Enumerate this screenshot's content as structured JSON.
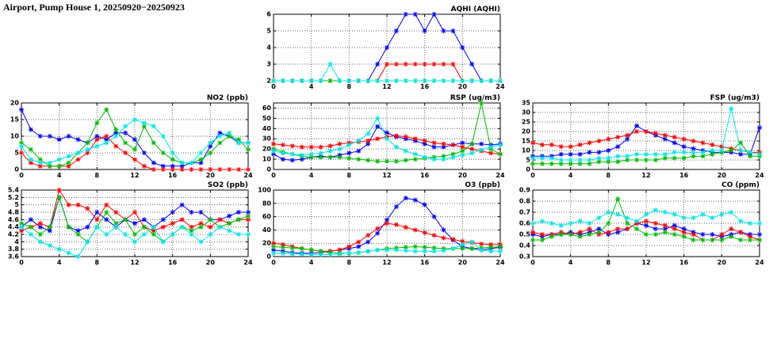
{
  "page_title": "Airport, Pump House 1, 20250920−20250923",
  "colors": {
    "series_blue": "#0000ff",
    "series_red": "#ff0000",
    "series_green": "#00bb00",
    "series_cyan": "#00e5e5",
    "grid": "#666666",
    "frame": "#000000",
    "background": "#ffffff"
  },
  "hours": [
    0,
    1,
    2,
    3,
    4,
    5,
    6,
    7,
    8,
    9,
    10,
    11,
    12,
    13,
    14,
    15,
    16,
    17,
    18,
    19,
    20,
    21,
    22,
    23,
    24
  ],
  "charts": [
    {
      "id": "aqhi",
      "title": "AQHI (AQHI)",
      "type": "line",
      "xlim": [
        0,
        24
      ],
      "xticks": [
        0,
        4,
        8,
        12,
        16,
        20,
        24
      ],
      "xlabels": [
        "0",
        "4",
        "8",
        "12",
        "16",
        "20",
        "24"
      ],
      "ylim": [
        2,
        6
      ],
      "yticks": [
        2,
        3,
        4,
        5,
        6
      ],
      "ylabels": [
        "2",
        "3",
        "4",
        "5",
        "6"
      ],
      "series": [
        {
          "name": "series-blue",
          "color": "#0000ff",
          "values": [
            2,
            2,
            2,
            2,
            2,
            2,
            2,
            2,
            2,
            2,
            2,
            3,
            4,
            5,
            6,
            6,
            5,
            6,
            5,
            5,
            4,
            3,
            2,
            2,
            2
          ]
        },
        {
          "name": "series-red",
          "color": "#ff0000",
          "values": [
            2,
            2,
            2,
            2,
            2,
            2,
            2,
            2,
            2,
            2,
            2,
            2,
            3,
            3,
            3,
            3,
            3,
            3,
            3,
            3,
            2,
            2,
            2,
            2,
            2
          ]
        },
        {
          "name": "series-green",
          "color": "#00bb00",
          "values": [
            2,
            2,
            2,
            2,
            2,
            2,
            2,
            2,
            2,
            2,
            2,
            2,
            2,
            2,
            2,
            2,
            2,
            2,
            2,
            2,
            2,
            2,
            2,
            2,
            2
          ]
        },
        {
          "name": "series-cyan",
          "color": "#00e5e5",
          "values": [
            2,
            2,
            2,
            2,
            2,
            2,
            3,
            2,
            2,
            2,
            2,
            2,
            2,
            2,
            2,
            2,
            2,
            2,
            2,
            2,
            2,
            2,
            2,
            2,
            2
          ]
        }
      ]
    },
    {
      "id": "no2",
      "title": "NO2 (ppb)",
      "type": "line",
      "xlim": [
        0,
        24
      ],
      "xticks": [
        0,
        4,
        8,
        12,
        16,
        20,
        24
      ],
      "xlabels": [
        "0",
        "4",
        "8",
        "12",
        "16",
        "20",
        "24"
      ],
      "ylim": [
        0,
        20
      ],
      "yticks": [
        0,
        5,
        10,
        15,
        20
      ],
      "ylabels": [
        "0",
        "5",
        "10",
        "15",
        "20"
      ],
      "series": [
        {
          "name": "series-blue",
          "color": "#0000ff",
          "values": [
            18,
            12,
            10,
            10,
            9,
            10,
            9,
            8,
            10,
            9,
            11,
            11,
            9,
            5,
            2,
            1,
            1,
            1,
            2,
            2,
            7,
            11,
            10,
            8,
            8
          ]
        },
        {
          "name": "series-red",
          "color": "#ff0000",
          "values": [
            5,
            2,
            1,
            1,
            1,
            1,
            3,
            5,
            9,
            10,
            7,
            5,
            3,
            1,
            0,
            0,
            0,
            0,
            0,
            0,
            0,
            0,
            0,
            0,
            0
          ]
        },
        {
          "name": "series-green",
          "color": "#00bb00",
          "values": [
            8,
            6,
            3,
            1,
            1,
            2,
            5,
            8,
            14,
            18,
            12,
            8,
            6,
            13,
            8,
            5,
            3,
            2,
            2,
            3,
            5,
            8,
            10,
            9,
            6
          ]
        },
        {
          "name": "series-cyan",
          "color": "#00e5e5",
          "values": [
            7,
            3,
            2,
            2,
            3,
            4,
            5,
            6,
            7,
            8,
            10,
            13,
            15,
            14,
            13,
            10,
            5,
            2,
            2,
            5,
            8,
            10,
            11,
            8,
            8
          ]
        }
      ]
    },
    {
      "id": "rsp",
      "title": "RSP (ug/m3)",
      "type": "line",
      "xlim": [
        0,
        24
      ],
      "xticks": [
        0,
        4,
        8,
        12,
        16,
        20,
        24
      ],
      "xlabels": [
        "0",
        "4",
        "8",
        "12",
        "16",
        "20",
        "24"
      ],
      "ylim": [
        0,
        65
      ],
      "yticks": [
        0,
        10,
        20,
        30,
        40,
        50,
        60
      ],
      "ylabels": [
        "0",
        "10",
        "20",
        "30",
        "40",
        "50",
        "60"
      ],
      "series": [
        {
          "name": "series-blue",
          "color": "#0000ff",
          "values": [
            15,
            10,
            9,
            10,
            12,
            13,
            12,
            14,
            16,
            18,
            25,
            42,
            36,
            32,
            30,
            28,
            25,
            22,
            22,
            24,
            26,
            25,
            25,
            24,
            25
          ]
        },
        {
          "name": "series-red",
          "color": "#ff0000",
          "values": [
            25,
            24,
            23,
            22,
            22,
            22,
            23,
            25,
            26,
            27,
            28,
            30,
            32,
            33,
            32,
            30,
            28,
            26,
            25,
            24,
            22,
            20,
            18,
            16,
            15
          ]
        },
        {
          "name": "series-green",
          "color": "#00bb00",
          "values": [
            20,
            17,
            15,
            13,
            12,
            12,
            12,
            12,
            11,
            10,
            9,
            8,
            8,
            8,
            9,
            10,
            11,
            12,
            13,
            15,
            18,
            25,
            65,
            20,
            15
          ]
        },
        {
          "name": "series-cyan",
          "color": "#00e5e5",
          "values": [
            18,
            16,
            15,
            14,
            15,
            16,
            18,
            20,
            24,
            28,
            35,
            50,
            30,
            22,
            18,
            15,
            12,
            10,
            10,
            12,
            14,
            16,
            19,
            22,
            24
          ]
        }
      ]
    },
    {
      "id": "fsp",
      "title": "FSP (ug/m3)",
      "type": "line",
      "xlim": [
        0,
        24
      ],
      "xticks": [
        0,
        4,
        8,
        12,
        16,
        20,
        24
      ],
      "xlabels": [
        "0",
        "4",
        "8",
        "12",
        "16",
        "20",
        "24"
      ],
      "ylim": [
        0,
        35
      ],
      "yticks": [
        0,
        5,
        10,
        15,
        20,
        25,
        30,
        35
      ],
      "ylabels": [
        "0",
        "5",
        "10",
        "15",
        "20",
        "25",
        "30",
        "35"
      ],
      "series": [
        {
          "name": "series-blue",
          "color": "#0000ff",
          "values": [
            7,
            7,
            7,
            8,
            8,
            8,
            9,
            9,
            10,
            12,
            16,
            23,
            20,
            18,
            16,
            14,
            12,
            11,
            10,
            9,
            9,
            9,
            8,
            8,
            22
          ]
        },
        {
          "name": "series-red",
          "color": "#ff0000",
          "values": [
            14,
            13,
            13,
            12,
            12,
            13,
            14,
            15,
            16,
            17,
            18,
            20,
            20,
            19,
            18,
            17,
            16,
            15,
            14,
            13,
            12,
            11,
            10,
            9,
            9
          ]
        },
        {
          "name": "series-green",
          "color": "#00bb00",
          "values": [
            3,
            3,
            3,
            3,
            3,
            3,
            3,
            4,
            4,
            4,
            5,
            5,
            5,
            5,
            6,
            6,
            6,
            7,
            7,
            8,
            9,
            10,
            14,
            7,
            7
          ]
        },
        {
          "name": "series-cyan",
          "color": "#00e5e5",
          "values": [
            6,
            6,
            6,
            5,
            5,
            5,
            5,
            6,
            6,
            7,
            7,
            8,
            8,
            8,
            8,
            9,
            9,
            9,
            9,
            10,
            10,
            32,
            10,
            9,
            8
          ]
        }
      ]
    },
    {
      "id": "so2",
      "title": "SO2 (ppb)",
      "type": "line",
      "xlim": [
        0,
        24
      ],
      "xticks": [
        0,
        4,
        8,
        12,
        16,
        20,
        24
      ],
      "xlabels": [
        "0",
        "4",
        "8",
        "12",
        "16",
        "20",
        "24"
      ],
      "ylim": [
        3.6,
        5.4
      ],
      "yticks": [
        3.6,
        3.8,
        4.0,
        4.2,
        4.4,
        4.6,
        4.8,
        5.0,
        5.2,
        5.4
      ],
      "ylabels": [
        "3.6",
        "3.8",
        "4",
        "4.2",
        "4.4",
        "4.6",
        "4.8",
        "5",
        "5.2",
        "5.4"
      ],
      "series": [
        {
          "name": "series-blue",
          "color": "#0000ff",
          "values": [
            4.4,
            4.6,
            4.4,
            4.3,
            5.2,
            4.4,
            4.3,
            4.4,
            4.8,
            4.6,
            4.4,
            4.6,
            4.5,
            4.6,
            4.4,
            4.6,
            4.8,
            5.0,
            4.8,
            4.8,
            4.6,
            4.6,
            4.7,
            4.8,
            4.8
          ]
        },
        {
          "name": "series-red",
          "color": "#ff0000",
          "values": [
            4.3,
            4.4,
            4.5,
            4.4,
            5.4,
            5.0,
            5.0,
            4.9,
            4.6,
            5.0,
            4.8,
            4.6,
            4.8,
            4.4,
            4.3,
            4.4,
            4.5,
            4.6,
            4.4,
            4.5,
            4.4,
            4.6,
            4.5,
            4.6,
            4.6
          ]
        },
        {
          "name": "series-green",
          "color": "#00bb00",
          "values": [
            4.5,
            4.4,
            4.2,
            4.4,
            5.2,
            4.4,
            4.2,
            4.0,
            4.4,
            4.8,
            4.5,
            4.6,
            4.2,
            4.4,
            4.2,
            4.0,
            4.2,
            4.4,
            4.3,
            4.4,
            4.6,
            4.4,
            4.5,
            4.6,
            4.7
          ]
        },
        {
          "name": "series-cyan",
          "color": "#00e5e5",
          "values": [
            4.4,
            4.2,
            4.0,
            3.9,
            3.8,
            3.7,
            3.6,
            4.0,
            4.4,
            4.2,
            4.4,
            4.2,
            4.0,
            4.2,
            4.4,
            4.0,
            4.2,
            4.4,
            4.2,
            4.0,
            4.2,
            4.4,
            4.3,
            4.2,
            4.2
          ]
        }
      ]
    },
    {
      "id": "o3",
      "title": "O3 (ppb)",
      "type": "line",
      "xlim": [
        0,
        24
      ],
      "xticks": [
        0,
        4,
        8,
        12,
        16,
        20,
        24
      ],
      "xlabels": [
        "0",
        "4",
        "8",
        "12",
        "16",
        "20",
        "24"
      ],
      "ylim": [
        0,
        100
      ],
      "yticks": [
        0,
        20,
        40,
        60,
        80,
        100
      ],
      "ylabels": [
        "0",
        "20",
        "40",
        "60",
        "80",
        "100"
      ],
      "series": [
        {
          "name": "series-blue",
          "color": "#0000ff",
          "values": [
            10,
            8,
            6,
            5,
            5,
            6,
            8,
            10,
            12,
            15,
            22,
            35,
            55,
            75,
            88,
            85,
            78,
            60,
            40,
            25,
            15,
            12,
            10,
            12,
            14
          ]
        },
        {
          "name": "series-red",
          "color": "#ff0000",
          "values": [
            20,
            18,
            15,
            12,
            10,
            8,
            8,
            10,
            15,
            22,
            32,
            42,
            50,
            48,
            44,
            40,
            36,
            32,
            28,
            26,
            23,
            21,
            19,
            18,
            18
          ]
        },
        {
          "name": "series-green",
          "color": "#00bb00",
          "values": [
            15,
            14,
            13,
            12,
            10,
            8,
            6,
            5,
            5,
            6,
            8,
            10,
            12,
            13,
            14,
            15,
            14,
            13,
            12,
            12,
            12,
            12,
            13,
            14,
            15
          ]
        },
        {
          "name": "series-cyan",
          "color": "#00e5e5",
          "values": [
            5,
            5,
            4,
            4,
            3,
            3,
            3,
            4,
            5,
            6,
            8,
            10,
            10,
            10,
            9,
            8,
            8,
            8,
            9,
            12,
            18,
            22,
            10,
            8,
            8
          ]
        }
      ]
    },
    {
      "id": "co",
      "title": "CO (ppm)",
      "type": "line",
      "xlim": [
        0,
        24
      ],
      "xticks": [
        0,
        4,
        8,
        12,
        16,
        20,
        24
      ],
      "xlabels": [
        "0",
        "4",
        "8",
        "12",
        "16",
        "20",
        "24"
      ],
      "ylim": [
        0.3,
        0.9
      ],
      "yticks": [
        0.3,
        0.4,
        0.5,
        0.6,
        0.7,
        0.8,
        0.9
      ],
      "ylabels": [
        "0.3",
        "0.4",
        "0.5",
        "0.6",
        "0.7",
        "0.8",
        "0.9"
      ],
      "series": [
        {
          "name": "series-blue",
          "color": "#0000ff",
          "values": [
            0.5,
            0.48,
            0.5,
            0.5,
            0.52,
            0.5,
            0.52,
            0.55,
            0.5,
            0.52,
            0.55,
            0.6,
            0.58,
            0.55,
            0.55,
            0.58,
            0.55,
            0.52,
            0.5,
            0.5,
            0.48,
            0.5,
            0.52,
            0.5,
            0.5
          ]
        },
        {
          "name": "series-red",
          "color": "#ff0000",
          "values": [
            0.52,
            0.5,
            0.5,
            0.52,
            0.5,
            0.52,
            0.55,
            0.5,
            0.52,
            0.55,
            0.55,
            0.6,
            0.62,
            0.6,
            0.58,
            0.55,
            0.52,
            0.5,
            0.45,
            0.45,
            0.5,
            0.55,
            0.52,
            0.48,
            0.45
          ]
        },
        {
          "name": "series-green",
          "color": "#00bb00",
          "values": [
            0.45,
            0.45,
            0.48,
            0.5,
            0.5,
            0.48,
            0.5,
            0.52,
            0.6,
            0.82,
            0.6,
            0.55,
            0.5,
            0.5,
            0.52,
            0.5,
            0.48,
            0.45,
            0.45,
            0.45,
            0.45,
            0.48,
            0.45,
            0.45,
            0.45
          ]
        },
        {
          "name": "series-cyan",
          "color": "#00e5e5",
          "values": [
            0.6,
            0.62,
            0.6,
            0.58,
            0.6,
            0.62,
            0.6,
            0.65,
            0.7,
            0.68,
            0.65,
            0.62,
            0.68,
            0.72,
            0.7,
            0.68,
            0.65,
            0.65,
            0.68,
            0.65,
            0.68,
            0.7,
            0.62,
            0.6,
            0.6
          ]
        }
      ]
    }
  ],
  "chart_data": {
    "note": "see charts[] above: 7 line charts (AQHI, NO2, RSP, FSP, SO2, O3, CO), 4 hourly series each (blue/red/green/cyan = 4 days 20250920-20250923), x axis hours 0-24, dotted grid, no legend, titles top-right"
  }
}
